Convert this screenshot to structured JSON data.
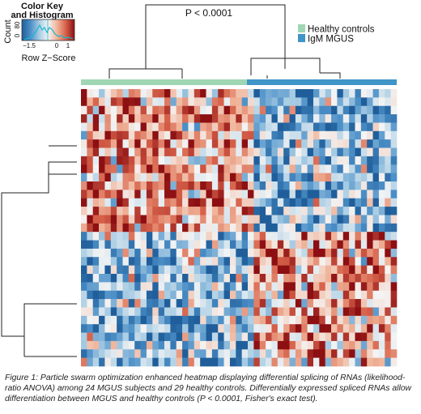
{
  "chart_data": {
    "type": "heatmap",
    "annotation": "P < 0.0001",
    "color_key": {
      "title_line1": "Color Key",
      "title_line2": "and Histogram",
      "xlabel": "Row Z−Score",
      "ylabel": "Count",
      "x_ticks": [
        "−1.5",
        "0",
        "1"
      ],
      "y_ticks": [
        "0",
        "80"
      ],
      "scale": [
        "#1f5e9a",
        "#4d90c8",
        "#a9cde4",
        "#f4f4f4",
        "#f0b49a",
        "#d7614a",
        "#8c0f12"
      ]
    },
    "legend": [
      {
        "label": "Healthy controls",
        "color": "#9fd6b4"
      },
      {
        "label": "IgM MGUS",
        "color": "#3f94c8"
      }
    ],
    "groups": {
      "healthy_controls": 29,
      "igm_mgus": 24
    },
    "column_clusters": [
      "Healthy controls",
      "IgM MGUS"
    ],
    "row_clusters": [
      "upper",
      "lower"
    ],
    "block_pattern": {
      "upper_rows": {
        "Healthy controls": "high (red)",
        "IgM MGUS": "low (blue)"
      },
      "lower_rows": {
        "Healthy controls": "low (blue)",
        "IgM MGUS": "high (red)"
      }
    },
    "value_range": [
      -1.5,
      1.5
    ]
  },
  "caption": "Figure 1: Particle swarm optimization enhanced heatmap displaying differential splicing of RNAs (likelihood-ratio ANOVA) among 24 MGUS subjects and 29 healthy controls. Differentially expressed spliced RNAs allow differentiation between MGUS and healthy controls (P < 0.0001, Fisher's exact test)."
}
